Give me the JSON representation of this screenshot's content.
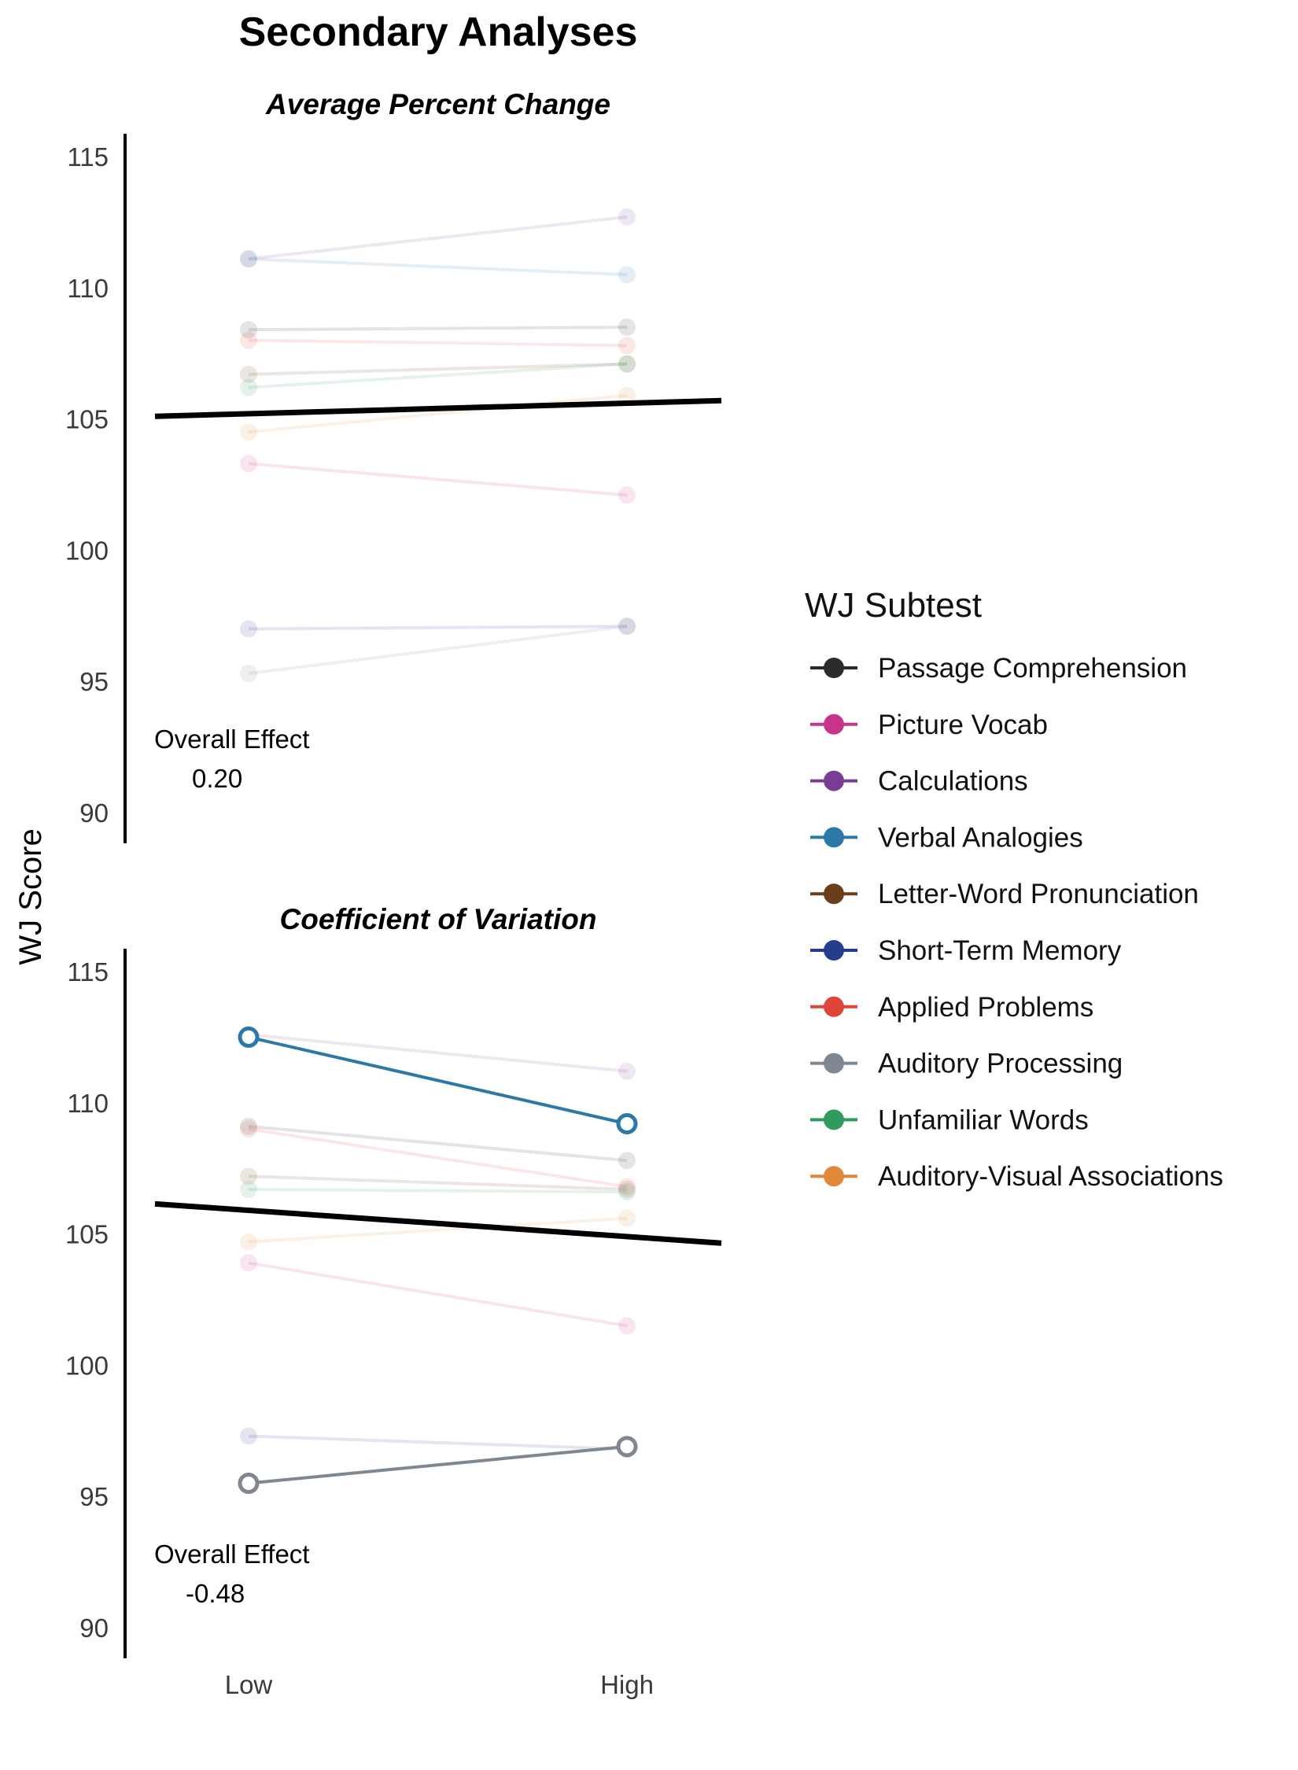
{
  "chart_data": {
    "type": "line",
    "title": "Secondary Analyses",
    "ylabel": "WJ Score",
    "categories": [
      "Low",
      "High"
    ],
    "ylim": [
      89,
      116
    ],
    "yticks": [
      90,
      95,
      100,
      105,
      110,
      115
    ],
    "grid": false,
    "legend": {
      "title": "WJ Subtest",
      "placement": "right",
      "entries": [
        {
          "name": "Passage Comprehension",
          "color": "#2b2b2b"
        },
        {
          "name": "Picture Vocab",
          "color": "#c7358a"
        },
        {
          "name": "Calculations",
          "color": "#7a3d96"
        },
        {
          "name": "Verbal Analogies",
          "color": "#2c79a8"
        },
        {
          "name": "Letter-Word Pronunciation",
          "color": "#6b3d18"
        },
        {
          "name": "Short-Term Memory",
          "color": "#263d8e"
        },
        {
          "name": "Applied Problems",
          "color": "#e0453a"
        },
        {
          "name": "Auditory Processing",
          "color": "#7f8790"
        },
        {
          "name": "Unfamiliar Words",
          "color": "#2e9a5e"
        },
        {
          "name": "Auditory-Visual Associations",
          "color": "#e0883a"
        }
      ]
    },
    "panels": [
      {
        "subtitle": "Average Percent Change",
        "annotation_label": "Overall Effect",
        "annotation_value": "0.20",
        "overall_line": [
          105.2,
          105.6
        ],
        "series": [
          {
            "name": "Passage Comprehension",
            "values": [
              108.4,
              108.5
            ],
            "highlight": false
          },
          {
            "name": "Picture Vocab",
            "values": [
              103.3,
              102.1
            ],
            "highlight": false
          },
          {
            "name": "Calculations",
            "values": [
              111.1,
              112.7
            ],
            "highlight": false
          },
          {
            "name": "Verbal Analogies",
            "values": [
              111.1,
              110.5
            ],
            "highlight": false
          },
          {
            "name": "Letter-Word Pronunciation",
            "values": [
              106.7,
              107.1
            ],
            "highlight": false
          },
          {
            "name": "Short-Term Memory",
            "values": [
              97.0,
              97.1
            ],
            "highlight": false
          },
          {
            "name": "Applied Problems",
            "values": [
              108.0,
              107.8
            ],
            "highlight": false
          },
          {
            "name": "Auditory Processing",
            "values": [
              95.3,
              97.1
            ],
            "highlight": false
          },
          {
            "name": "Unfamiliar Words",
            "values": [
              106.2,
              107.1
            ],
            "highlight": false
          },
          {
            "name": "Auditory-Visual Associations",
            "values": [
              104.5,
              105.9
            ],
            "highlight": false
          }
        ]
      },
      {
        "subtitle": "Coefficient of Variation",
        "annotation_label": "Overall Effect",
        "annotation_value": "-0.48",
        "overall_line": [
          105.9,
          104.9
        ],
        "series": [
          {
            "name": "Passage Comprehension",
            "values": [
              109.1,
              107.8
            ],
            "highlight": false
          },
          {
            "name": "Picture Vocab",
            "values": [
              103.9,
              101.5
            ],
            "highlight": false
          },
          {
            "name": "Calculations",
            "values": [
              112.6,
              111.2
            ],
            "highlight": false
          },
          {
            "name": "Verbal Analogies",
            "values": [
              112.5,
              109.2
            ],
            "highlight": true
          },
          {
            "name": "Letter-Word Pronunciation",
            "values": [
              107.2,
              106.7
            ],
            "highlight": false
          },
          {
            "name": "Short-Term Memory",
            "values": [
              97.3,
              96.8
            ],
            "highlight": false
          },
          {
            "name": "Applied Problems",
            "values": [
              109.0,
              106.8
            ],
            "highlight": false
          },
          {
            "name": "Auditory Processing",
            "values": [
              95.5,
              96.9
            ],
            "highlight": true
          },
          {
            "name": "Unfamiliar Words",
            "values": [
              106.7,
              106.6
            ],
            "highlight": false
          },
          {
            "name": "Auditory-Visual Associations",
            "values": [
              104.7,
              105.6
            ],
            "highlight": false
          }
        ]
      }
    ]
  }
}
